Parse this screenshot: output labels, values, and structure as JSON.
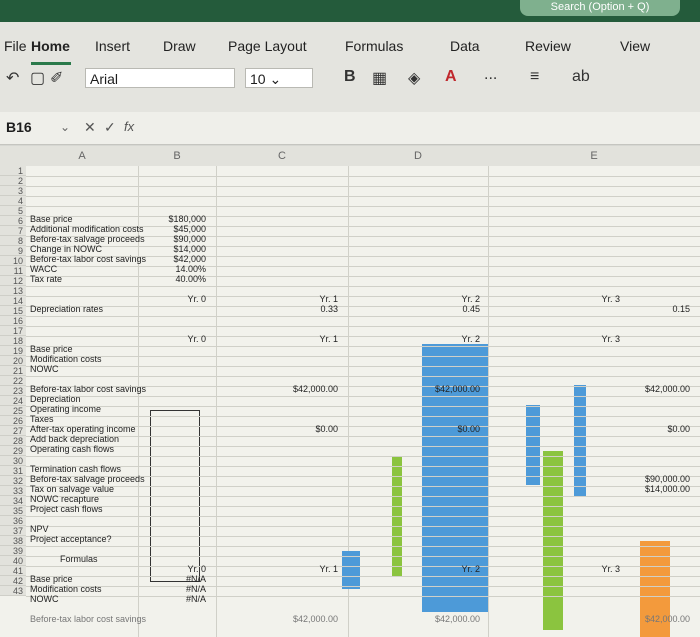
{
  "search": {
    "label": "Search (Option + Q)"
  },
  "menu": {
    "tabs": [
      "File",
      "Home",
      "Insert",
      "Draw",
      "Page Layout",
      "Formulas",
      "Data",
      "Review",
      "View"
    ]
  },
  "toolbar": {
    "font_name": "Arial",
    "font_size": "10",
    "bold_label": "B",
    "more_label": "...",
    "fx_label": "fx"
  },
  "formula_bar": {
    "cell_ref": "B16"
  },
  "columns": [
    "A",
    "B",
    "C",
    "D",
    "E"
  ],
  "rows": [
    "1",
    "2",
    "3",
    "4",
    "5",
    "6",
    "7",
    "8",
    "9",
    "10",
    "11",
    "12",
    "13",
    "14",
    "15",
    "16",
    "17",
    "18",
    "19",
    "20",
    "21",
    "22",
    "23",
    "24",
    "25",
    "26",
    "27",
    "28",
    "29",
    "30",
    "31",
    "32",
    "33",
    "34",
    "35",
    "36",
    "37",
    "38",
    "39",
    "40",
    "41",
    "42",
    "43"
  ],
  "labels": {
    "r3": "Base price",
    "r4": "Additional modification costs",
    "r5": "Before-tax salvage proceeds",
    "r6": "Change in NOWC",
    "r7": "Before-tax labor cost savings",
    "r8": "WACC",
    "r9": "Tax rate",
    "r12": "Depreciation rates",
    "r16": "Base price",
    "r17": "Modification costs",
    "r18": "NOWC",
    "r20": "Before-tax labor cost savings",
    "r21": "Depreciation",
    "r22": "Operating income",
    "r23": "Taxes",
    "r24": "After-tax operating income",
    "r25": "Add back depreciation",
    "r26": "Operating cash flows",
    "r28": "Termination cash flows",
    "r29": "Before-tax salvage proceeds",
    "r30": "Tax on salvage value",
    "r31": "NOWC recapture",
    "r32": "Project cash flows",
    "r34": "NPV",
    "r35": "Project acceptance?",
    "r37": "Formulas",
    "r39": "Base price",
    "r40": "Modification costs",
    "r41": "NOWC",
    "r43": "Before-tax labor cost savings"
  },
  "inputs": {
    "r3": "$180,000",
    "r4": "$45,000",
    "r5": "$90,000",
    "r6": "$14,000",
    "r7": "$42,000",
    "r8": "14.00%",
    "r9": "40.00%"
  },
  "years": {
    "y0": "Yr. 0",
    "y1": "Yr. 1",
    "y2": "Yr. 2",
    "y3": "Yr. 3"
  },
  "dep_rates": {
    "y1": "0.33",
    "y2": "0.45",
    "y3": "0.15"
  },
  "values": {
    "r20_c": "$42,000.00",
    "r20_d": "$42,000.00",
    "r20_e": "$42,000.00",
    "r24_c": "$0.00",
    "r24_d": "$0.00",
    "r24_e": "$0.00",
    "r29_e": "$90,000.00",
    "r30_e": "$14,000.00",
    "r43_c": "$42,000.00",
    "r43_d": "$42,000.00",
    "r43_e": "$42,000.00"
  },
  "na": {
    "r39": "#N/A",
    "r40": "#N/A",
    "r41": "#N/A"
  },
  "colors": {
    "accent": "#245b3b",
    "blue_fill": "#4d9ad8",
    "green_fill": "#8bc43f",
    "orange_fill": "#f39a3c"
  }
}
